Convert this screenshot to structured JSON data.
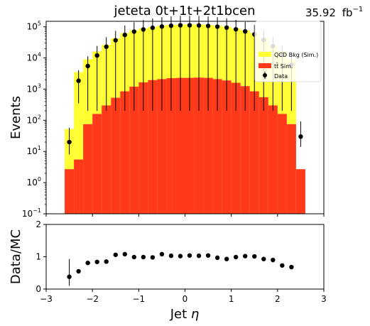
{
  "chart_data": [
    {
      "type": "bar",
      "panel": "main",
      "title": "jeteta  0t+1t+2t1bcen",
      "lumi_label": "35.92",
      "lumi_unit": "fb",
      "lumi_exp": "−1",
      "ylabel": "Events",
      "xlabel": "",
      "xlim": [
        -3,
        3
      ],
      "ylim": [
        0.1,
        150000
      ],
      "yscale": "log",
      "stacked": true,
      "grid": false,
      "legend_position": "top-right",
      "bin_edges": [
        -2.6,
        -2.4,
        -2.2,
        -2.0,
        -1.8,
        -1.6,
        -1.4,
        -1.2,
        -1.0,
        -0.8,
        -0.6,
        -0.4,
        -0.2,
        0.0,
        0.2,
        0.4,
        0.6,
        0.8,
        1.0,
        1.2,
        1.4,
        1.6,
        1.8,
        2.0,
        2.2,
        2.4,
        2.6
      ],
      "x_ticks": [
        -3,
        -2,
        -1,
        0,
        1,
        2,
        3
      ],
      "x_tick_labels": [
        "−3",
        "−2",
        "−1",
        "0",
        "1",
        "2",
        "3"
      ],
      "y_ticks": [
        {
          "exp": -1,
          "label": "10",
          "sup": "−1"
        },
        {
          "exp": 0,
          "label": "10",
          "sup": "0"
        },
        {
          "exp": 1,
          "label": "10",
          "sup": "1"
        },
        {
          "exp": 2,
          "label": "10",
          "sup": "2"
        },
        {
          "exp": 3,
          "label": "10",
          "sup": "3"
        },
        {
          "exp": 4,
          "label": "10",
          "sup": "4"
        },
        {
          "exp": 5,
          "label": "10",
          "sup": "5"
        }
      ],
      "series": [
        {
          "name": "tt̄ Sim.",
          "legend_label": "tt Sim.",
          "color": "#ff3a1a",
          "values": [
            2.7,
            5.5,
            75,
            160,
            300,
            530,
            850,
            1200,
            1650,
            1950,
            2100,
            2250,
            2300,
            2300,
            2350,
            2300,
            2100,
            1900,
            1600,
            1250,
            850,
            550,
            300,
            160,
            75,
            2.7
          ]
        },
        {
          "name": "QCD Bkg (Sim.)",
          "color": "#ffff33",
          "values": [
            50,
            3500,
            9000,
            16000,
            26000,
            42000,
            62000,
            76000,
            87000,
            98000,
            107000,
            113000,
            116000,
            117000,
            117000,
            113000,
            107000,
            98000,
            87000,
            76000,
            62000,
            42000,
            26000,
            16000,
            9000,
            0
          ]
        },
        {
          "name": "Data",
          "color": "#000000",
          "x": [
            -2.5,
            -2.3,
            -2.1,
            -1.9,
            -1.7,
            -1.5,
            -1.3,
            -1.1,
            -0.9,
            -0.7,
            -0.5,
            -0.3,
            -0.1,
            0.1,
            0.3,
            0.5,
            0.7,
            0.9,
            1.1,
            1.3,
            1.5,
            1.7,
            1.9,
            2.1,
            2.3,
            2.5
          ],
          "values": [
            20,
            1850,
            5500,
            12000,
            23000,
            37000,
            55000,
            70000,
            82000,
            93000,
            102000,
            108000,
            112000,
            112000,
            111000,
            107000,
            101000,
            94000,
            83000,
            71000,
            57000,
            38000,
            24000,
            12500,
            6000,
            30
          ],
          "err_low": [
            12,
            1500,
            5300,
            11800,
            22800,
            36800,
            54800,
            69800,
            81800,
            92800,
            101800,
            107800,
            111800,
            111800,
            110800,
            106800,
            100800,
            93800,
            82800,
            70800,
            56800,
            37800,
            23800,
            12300,
            5800,
            16
          ],
          "err_high": [
            38,
            2200,
            5800,
            12300,
            23300,
            37300,
            55300,
            70300,
            82300,
            93300,
            102300,
            108300,
            112300,
            112300,
            111300,
            107300,
            101300,
            94300,
            83300,
            71300,
            57300,
            38300,
            24300,
            12800,
            6200,
            62
          ]
        }
      ]
    },
    {
      "type": "scatter",
      "panel": "ratio",
      "ylabel": "Data/MC",
      "xlabel": "Jet η",
      "xlabel_main": "Jet ",
      "xlabel_symbol": "η",
      "xlim": [
        -3,
        3
      ],
      "ylim": [
        0,
        2
      ],
      "grid": false,
      "x_ticks": [
        -3,
        -2,
        -1,
        0,
        1,
        2,
        3
      ],
      "x_tick_labels": [
        "−3",
        "−2",
        "−1",
        "0",
        "1",
        "2",
        "3"
      ],
      "y_ticks": [
        0,
        1,
        2
      ],
      "y_tick_labels": [
        "0",
        "1",
        "2"
      ],
      "series": [
        {
          "name": "Data/MC",
          "color": "#000000",
          "x": [
            -2.5,
            -2.3,
            -2.1,
            -1.9,
            -1.7,
            -1.5,
            -1.3,
            -1.1,
            -0.9,
            -0.7,
            -0.5,
            -0.3,
            -0.1,
            0.1,
            0.3,
            0.5,
            0.7,
            0.9,
            1.1,
            1.3,
            1.5,
            1.7,
            1.9,
            2.1,
            2.3
          ],
          "values": [
            0.38,
            0.55,
            0.81,
            0.84,
            0.85,
            1.06,
            1.08,
            0.99,
            0.99,
            0.98,
            1.08,
            1.03,
            1.02,
            1.04,
            1.03,
            1.04,
            0.97,
            0.93,
            0.99,
            1.02,
            1.01,
            0.93,
            0.9,
            0.73,
            0.68
          ],
          "err_low": [
            0.28,
            0.02,
            0.01,
            0.01,
            0.01,
            0.01,
            0.01,
            0.01,
            0.01,
            0.01,
            0.01,
            0.01,
            0.01,
            0.01,
            0.01,
            0.01,
            0.01,
            0.01,
            0.01,
            0.01,
            0.01,
            0.01,
            0.01,
            0.01,
            0.01
          ],
          "err_high": [
            0.55,
            0.02,
            0.01,
            0.01,
            0.01,
            0.01,
            0.01,
            0.01,
            0.01,
            0.01,
            0.01,
            0.01,
            0.01,
            0.01,
            0.01,
            0.01,
            0.01,
            0.01,
            0.01,
            0.01,
            0.01,
            0.01,
            0.01,
            0.01,
            0.01
          ]
        }
      ]
    }
  ]
}
